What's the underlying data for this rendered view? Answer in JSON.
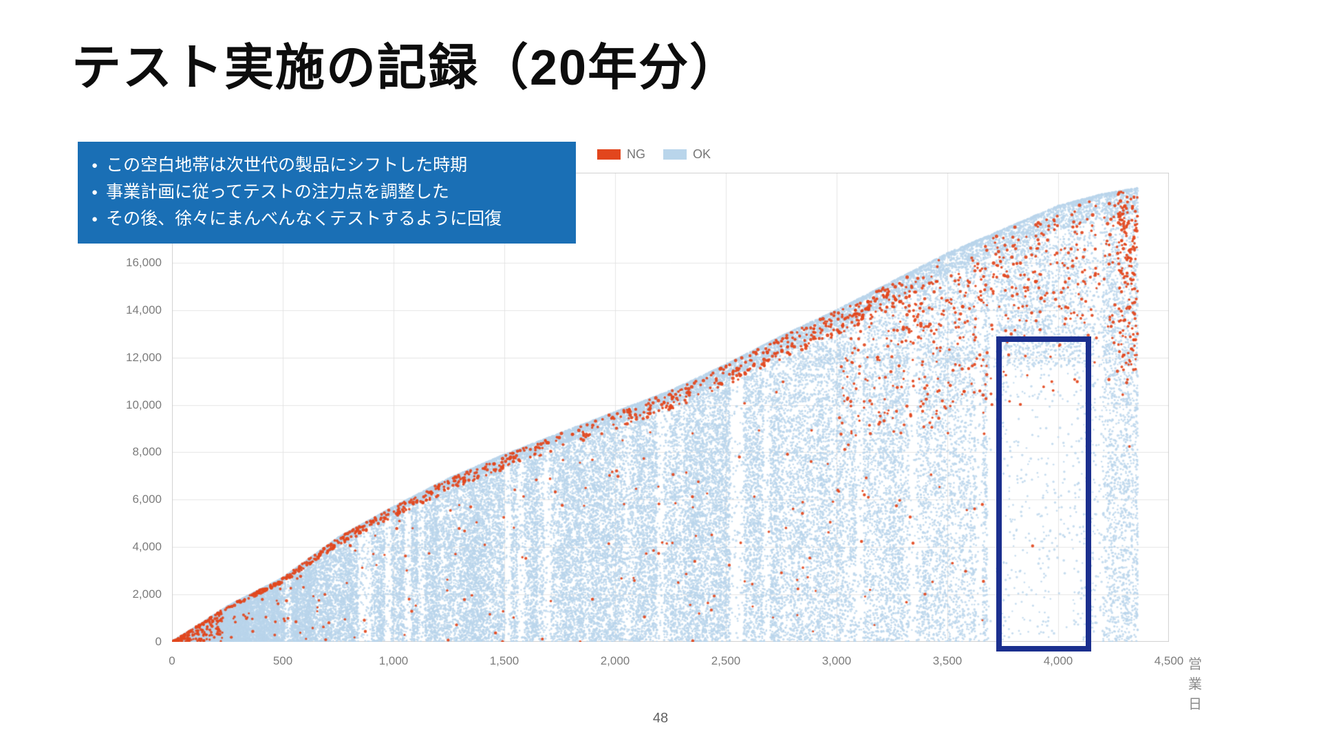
{
  "title": "テスト実施の記録（20年分）",
  "callout": {
    "background": "#1a6fb5",
    "bullet_marker": "●",
    "bullets": [
      "この空白地帯は次世代の製品にシフトした時期",
      "事業計画に従ってテストの注力点を調整した",
      "その後、徐々にまんべんなくテストするように回復"
    ]
  },
  "page_number": "48",
  "chart_data": {
    "type": "scatter",
    "title": "",
    "xlabel": "営業日",
    "ylabel": "",
    "xlim": [
      0,
      4500
    ],
    "ylim": [
      0,
      19800
    ],
    "grid": true,
    "grid_color": "#e4e4e4",
    "border_color": "#cfcfcf",
    "legend_position": "top",
    "x_ticks": [
      0,
      500,
      1000,
      1500,
      2000,
      2500,
      3000,
      3500,
      4000,
      4500
    ],
    "x_tick_labels": [
      "0",
      "500",
      "1,000",
      "1,500",
      "2,000",
      "2,500",
      "3,000",
      "3,500",
      "4,000",
      "4,500"
    ],
    "y_ticks": [
      0,
      2000,
      4000,
      6000,
      8000,
      10000,
      12000,
      14000,
      16000
    ],
    "y_tick_labels": [
      "0",
      "2,000",
      "4,000",
      "6,000",
      "8,000",
      "10,000",
      "12,000",
      "14,000",
      "16,000"
    ],
    "series": [
      {
        "name": "NG",
        "color": "#e2461d"
      },
      {
        "name": "OK",
        "color": "#b9d5eb"
      }
    ],
    "x_data_max": 4360,
    "ok_envelope": [
      [
        0,
        0
      ],
      [
        120,
        700
      ],
      [
        250,
        1500
      ],
      [
        500,
        2700
      ],
      [
        750,
        4400
      ],
      [
        1000,
        5700
      ],
      [
        1250,
        6900
      ],
      [
        1500,
        7900
      ],
      [
        1750,
        8800
      ],
      [
        2000,
        9700
      ],
      [
        2250,
        10600
      ],
      [
        2500,
        11700
      ],
      [
        2750,
        12900
      ],
      [
        3000,
        14000
      ],
      [
        3250,
        15200
      ],
      [
        3500,
        16400
      ],
      [
        3750,
        17400
      ],
      [
        4000,
        18400
      ],
      [
        4200,
        18900
      ],
      [
        4360,
        19150
      ]
    ],
    "gap_region": {
      "x0": 3680,
      "x1": 4300,
      "y_below": 12400
    },
    "dense_band": {
      "x0": 2900,
      "y0": 11600,
      "y1": 12500
    },
    "highlight_box": {
      "x0": 3720,
      "x1": 4150,
      "y_top": 12900,
      "color": "#1b2f8e"
    },
    "render": {
      "seed": 1337,
      "ok_body_points": 46000,
      "ok_edge_points": 9000,
      "ng_edge_points": 950,
      "ng_spray_points": 420,
      "ng_body_points": 260,
      "ng_tip_points": 150,
      "ng_right_edge_points": 130
    }
  }
}
